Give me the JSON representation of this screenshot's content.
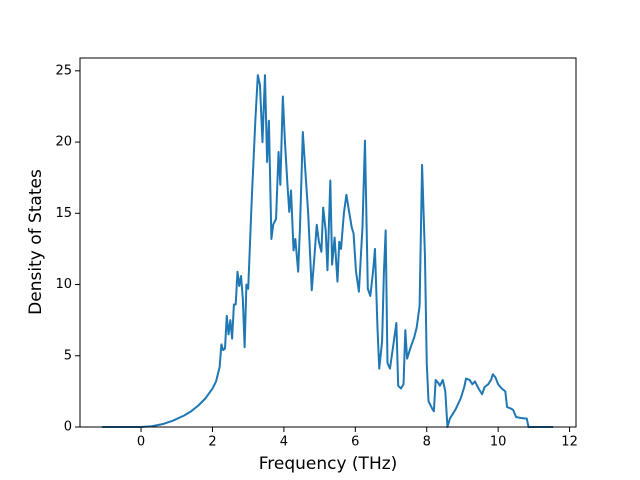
{
  "chart_data": {
    "type": "line",
    "xlabel": "Frequency (THz)",
    "ylabel": "Density of States",
    "color": "#1f77b4",
    "xlim": [
      -1.71,
      12.18
    ],
    "ylim": [
      0,
      25.9
    ],
    "xticks": [
      0,
      2,
      4,
      6,
      8,
      10,
      12
    ],
    "yticks": [
      0,
      5,
      10,
      15,
      20,
      25
    ],
    "x": [
      -1.09,
      -0.5,
      0,
      0.3,
      0.6,
      0.9,
      1.2,
      1.4,
      1.6,
      1.8,
      2.0,
      2.1,
      2.2,
      2.25,
      2.3,
      2.35,
      2.4,
      2.45,
      2.5,
      2.55,
      2.6,
      2.65,
      2.7,
      2.75,
      2.8,
      2.85,
      2.9,
      2.95,
      3.0,
      3.1,
      3.2,
      3.27,
      3.33,
      3.4,
      3.47,
      3.53,
      3.58,
      3.65,
      3.7,
      3.78,
      3.85,
      3.9,
      3.97,
      4.03,
      4.1,
      4.15,
      4.2,
      4.27,
      4.32,
      4.4,
      4.45,
      4.53,
      4.6,
      4.68,
      4.78,
      4.85,
      4.92,
      4.98,
      5.05,
      5.1,
      5.17,
      5.22,
      5.3,
      5.35,
      5.42,
      5.5,
      5.55,
      5.6,
      5.68,
      5.75,
      5.82,
      5.9,
      5.95,
      6.02,
      6.1,
      6.2,
      6.27,
      6.35,
      6.42,
      6.5,
      6.55,
      6.62,
      6.67,
      6.75,
      6.8,
      6.85,
      6.9,
      6.97,
      7.05,
      7.15,
      7.2,
      7.28,
      7.35,
      7.4,
      7.45,
      7.55,
      7.65,
      7.72,
      7.8,
      7.87,
      7.95,
      8.0,
      8.05,
      8.15,
      8.2,
      8.25,
      8.32,
      8.37,
      8.45,
      8.52,
      8.58,
      8.65,
      8.8,
      8.95,
      9.05,
      9.1,
      9.2,
      9.28,
      9.35,
      9.45,
      9.55,
      9.62,
      9.72,
      9.8,
      9.85,
      9.92,
      10.0,
      10.1,
      10.2,
      10.25,
      10.35,
      10.42,
      10.5,
      10.6,
      10.75,
      10.8,
      10.85,
      11.0,
      11.54
    ],
    "y": [
      0,
      0,
      0,
      0.05,
      0.2,
      0.45,
      0.8,
      1.1,
      1.5,
      2.0,
      2.7,
      3.2,
      4.2,
      5.8,
      5.4,
      5.5,
      7.8,
      6.5,
      7.5,
      6.2,
      8.6,
      8.6,
      10.9,
      9.9,
      10.6,
      9.0,
      5.6,
      10.0,
      9.7,
      16,
      21.5,
      24.7,
      24.0,
      20.0,
      24.7,
      18.6,
      21.5,
      13.2,
      14.2,
      14.6,
      19.3,
      17.0,
      23.2,
      20.0,
      17.0,
      15.1,
      16.6,
      12.4,
      13.2,
      10.9,
      14.0,
      20.7,
      18.0,
      15.0,
      9.6,
      11.8,
      14.2,
      13.0,
      12.3,
      15.4,
      13.8,
      11.0,
      17.3,
      11.4,
      13.3,
      10.2,
      13.0,
      12.5,
      15.0,
      16.3,
      15.2,
      14.0,
      13.6,
      10.9,
      9.5,
      14.0,
      20.1,
      9.7,
      9.2,
      11.0,
      12.5,
      7.0,
      4.1,
      6.0,
      10.8,
      13.8,
      4.5,
      4.1,
      5.5,
      7.3,
      2.9,
      2.7,
      3.0,
      6.8,
      4.8,
      5.6,
      6.3,
      7.0,
      8.5,
      18.4,
      12.0,
      4.5,
      1.8,
      1.3,
      1.1,
      3.3,
      3.1,
      2.9,
      3.3,
      2.5,
      0.0,
      0.6,
      1.2,
      2.0,
      2.8,
      3.4,
      3.3,
      3.0,
      3.2,
      2.7,
      2.3,
      2.8,
      3.0,
      3.3,
      3.7,
      3.5,
      3.0,
      2.7,
      2.5,
      1.4,
      1.3,
      1.2,
      0.7,
      0.65,
      0.6,
      0.6,
      0.0,
      0.0,
      0.0
    ]
  }
}
